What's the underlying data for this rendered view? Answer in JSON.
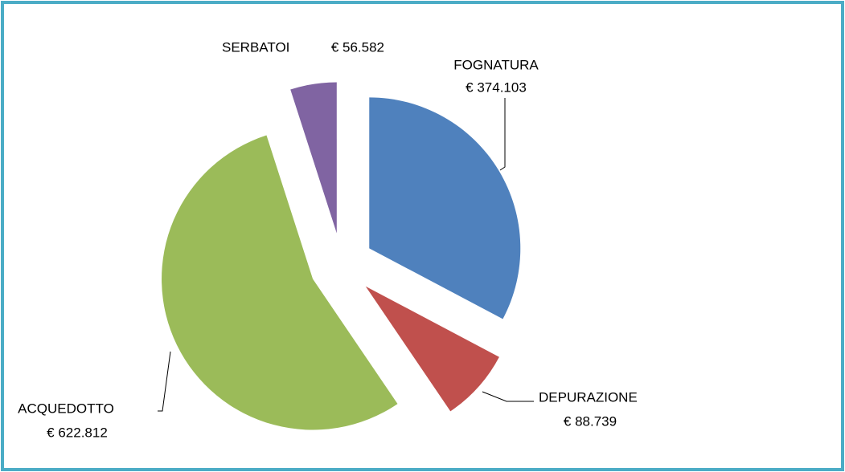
{
  "chart_data": {
    "type": "pie",
    "categories": [
      "FOGNATURA",
      "DEPURAZIONE",
      "ACQUEDOTTO",
      "SERBATOI"
    ],
    "values": [
      374103,
      88739,
      622812,
      56582
    ],
    "value_labels": [
      "€ 374.103",
      "€ 88.739",
      "€ 622.812",
      "€ 56.582"
    ],
    "colors": [
      "#4f81bd",
      "#c0504d",
      "#9bbb59",
      "#8064a2"
    ]
  }
}
